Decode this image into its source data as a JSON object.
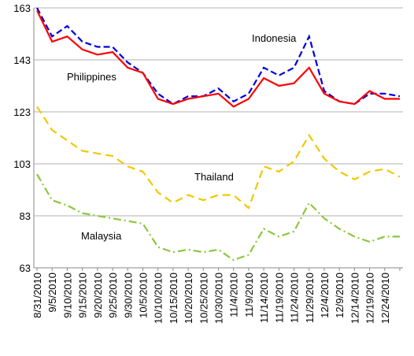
{
  "chart_data": {
    "type": "line",
    "categories": [
      "8/31/2010",
      "9/5/2010",
      "9/10/2010",
      "9/15/2010",
      "9/20/2010",
      "9/25/2010",
      "9/30/2010",
      "10/5/2010",
      "10/10/2010",
      "10/15/2010",
      "10/20/2010",
      "10/25/2010",
      "10/30/2010",
      "11/4/2010",
      "11/9/2010",
      "11/14/2010",
      "11/19/2010",
      "11/24/2010",
      "11/29/2010",
      "12/4/2010",
      "12/9/2010",
      "12/14/2010",
      "12/19/2010",
      "12/24/2010",
      null
    ],
    "series": [
      {
        "name": "Indonesia",
        "color": "#0000dd",
        "dash": "8 4",
        "values": [
          163,
          152,
          156,
          150,
          148,
          148,
          142,
          138,
          130,
          126,
          129,
          129,
          132,
          127,
          130,
          140,
          137,
          140,
          152,
          131,
          127,
          126,
          130,
          130,
          129
        ]
      },
      {
        "name": "Philippines",
        "color": "#ff0000",
        "values": [
          162,
          150,
          152,
          147,
          145,
          146,
          140,
          138,
          128,
          126,
          128,
          129,
          130,
          125,
          128,
          136,
          133,
          134,
          140,
          130,
          127,
          126,
          131,
          128,
          128
        ]
      },
      {
        "name": "Thailand",
        "color": "#f2c800",
        "dash": "10 6",
        "values": [
          125,
          116,
          112,
          108,
          107,
          106,
          102,
          100,
          92,
          88,
          91,
          89,
          91,
          91,
          86,
          102,
          100,
          104,
          114,
          105,
          100,
          97,
          100,
          101,
          98
        ]
      },
      {
        "name": "Malaysia",
        "color": "#8cc63e",
        "dash": "10 4 2 4",
        "values": [
          99,
          89,
          87,
          84,
          83,
          82,
          81,
          80,
          71,
          69,
          70,
          69,
          70,
          66,
          68,
          78,
          75,
          77,
          88,
          82,
          78,
          75,
          73,
          75,
          75
        ]
      }
    ],
    "ylim": [
      63,
      163
    ],
    "yticks": [
      63,
      83,
      103,
      123,
      143,
      163
    ],
    "grid": true
  }
}
